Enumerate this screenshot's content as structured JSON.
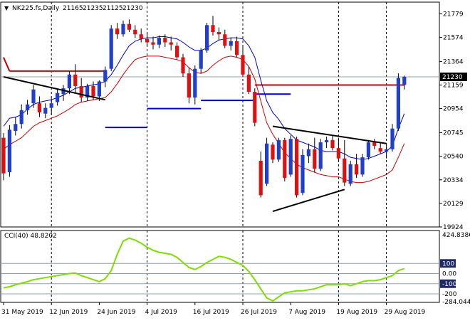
{
  "chart_data": [
    {
      "type": "candlestick",
      "title": "NK225.fs,Daily",
      "ohlc_header": [
        "21165",
        "21235",
        "21125",
        "21230"
      ],
      "last_price_label": "21230",
      "y_ticks": [
        19924,
        20129,
        20334,
        20540,
        20745,
        20954,
        21159,
        21364,
        21574,
        21779
      ],
      "ylim": [
        19924,
        21880
      ],
      "x_ticks": [
        {
          "i": 0,
          "label": "31 May 2019"
        },
        {
          "i": 8,
          "label": "12 Jun 2019"
        },
        {
          "i": 16,
          "label": "24 Jun 2019"
        },
        {
          "i": 24,
          "label": "4 Jul 2019"
        },
        {
          "i": 32,
          "label": "16 Jul 2019"
        },
        {
          "i": 40,
          "label": "26 Jul 2019"
        },
        {
          "i": 48,
          "label": "7 Aug 2019"
        },
        {
          "i": 56,
          "label": "19 Aug 2019"
        },
        {
          "i": 64,
          "label": "29 Aug 2019"
        }
      ],
      "vertical_dashed_at": [
        8,
        24,
        40,
        56,
        64
      ],
      "candles": [
        [
          20700,
          20740,
          20330,
          20390
        ],
        [
          20400,
          20810,
          20360,
          20770
        ],
        [
          20760,
          20880,
          20720,
          20820
        ],
        [
          20820,
          20990,
          20780,
          20940
        ],
        [
          20940,
          21030,
          20900,
          20990
        ],
        [
          21000,
          21160,
          20960,
          21120
        ],
        [
          21000,
          21060,
          20880,
          20920
        ],
        [
          20910,
          21000,
          20870,
          20960
        ],
        [
          20960,
          21050,
          20900,
          21000
        ],
        [
          21010,
          21120,
          20980,
          21090
        ],
        [
          21080,
          21160,
          21020,
          21130
        ],
        [
          21130,
          21280,
          21080,
          21250
        ],
        [
          21250,
          21340,
          21090,
          21150
        ],
        [
          21150,
          21220,
          21010,
          21050
        ],
        [
          21050,
          21170,
          21020,
          21150
        ],
        [
          21150,
          21190,
          21030,
          21060
        ],
        [
          21060,
          21200,
          21020,
          21190
        ],
        [
          21190,
          21320,
          21140,
          21290
        ],
        [
          21300,
          21680,
          21280,
          21650
        ],
        [
          21650,
          21700,
          21560,
          21600
        ],
        [
          21600,
          21720,
          21580,
          21690
        ],
        [
          21690,
          21730,
          21620,
          21640
        ],
        [
          21640,
          21680,
          21570,
          21600
        ],
        [
          21600,
          21650,
          21530,
          21560
        ],
        [
          21560,
          21620,
          21500,
          21530
        ],
        [
          21530,
          21580,
          21470,
          21510
        ],
        [
          21510,
          21590,
          21480,
          21570
        ],
        [
          21570,
          21600,
          21490,
          21530
        ],
        [
          21530,
          21580,
          21460,
          21510
        ],
        [
          21500,
          21530,
          21380,
          21400
        ],
        [
          21400,
          21430,
          21230,
          21260
        ],
        [
          21260,
          21310,
          21000,
          21050
        ],
        [
          21050,
          21330,
          20990,
          21300
        ],
        [
          21300,
          21480,
          21260,
          21460
        ],
        [
          21460,
          21700,
          21440,
          21680
        ],
        [
          21680,
          21760,
          21590,
          21620
        ],
        [
          21620,
          21660,
          21550,
          21600
        ],
        [
          21600,
          21640,
          21480,
          21500
        ],
        [
          21500,
          21570,
          21460,
          21540
        ],
        [
          21540,
          21580,
          21400,
          21420
        ],
        [
          21420,
          21490,
          21230,
          21250
        ],
        [
          21250,
          21320,
          21080,
          21100
        ],
        [
          21100,
          21130,
          20800,
          20830
        ],
        [
          20500,
          20580,
          20180,
          20200
        ],
        [
          20300,
          20700,
          20280,
          20650
        ],
        [
          20640,
          20660,
          20480,
          20510
        ],
        [
          20510,
          20700,
          20490,
          20680
        ],
        [
          20680,
          20700,
          20320,
          20350
        ],
        [
          20380,
          20720,
          20360,
          20690
        ],
        [
          20690,
          20710,
          20180,
          20200
        ],
        [
          20220,
          20600,
          20200,
          20550
        ],
        [
          20540,
          20650,
          20480,
          20600
        ],
        [
          20600,
          20700,
          20400,
          20430
        ],
        [
          20430,
          20690,
          20410,
          20660
        ],
        [
          20660,
          20710,
          20610,
          20680
        ],
        [
          20680,
          20720,
          20590,
          20610
        ],
        [
          20610,
          20700,
          20500,
          20520
        ],
        [
          20520,
          20680,
          20280,
          20310
        ],
        [
          20300,
          20500,
          20280,
          20470
        ],
        [
          20470,
          20560,
          20350,
          20380
        ],
        [
          20380,
          20560,
          20360,
          20530
        ],
        [
          20530,
          20680,
          20510,
          20660
        ],
        [
          20660,
          20690,
          20600,
          20630
        ],
        [
          20610,
          20660,
          20560,
          20580
        ],
        [
          20580,
          20640,
          20520,
          20600
        ],
        [
          20600,
          20820,
          20580,
          20780
        ],
        [
          20780,
          21260,
          20760,
          21220
        ],
        [
          21160,
          21240,
          21120,
          21230
        ]
      ],
      "series": [
        {
          "color": "#0000cc",
          "values": [
            20800,
            20870,
            20880,
            20900,
            20950,
            20990,
            21010,
            21020,
            21030,
            21050,
            21070,
            21100,
            21130,
            21140,
            21150,
            21160,
            21170,
            21190,
            21250,
            21330,
            21420,
            21500,
            21540,
            21560,
            21570,
            21570,
            21580,
            21580,
            21570,
            21560,
            21530,
            21490,
            21460,
            21460,
            21480,
            21520,
            21550,
            21560,
            21570,
            21570,
            21560,
            21500,
            21400,
            21200,
            21020,
            20920,
            20860,
            20780,
            20730,
            20680,
            20660,
            20640,
            20620,
            20590,
            20580,
            20580,
            20580,
            20560,
            20530,
            20520,
            20510,
            20520,
            20540,
            20560,
            20580,
            20630,
            20780,
            20910
          ]
        },
        {
          "color": "#cc0000",
          "values": [
            20600,
            20640,
            20670,
            20700,
            20750,
            20800,
            20830,
            20850,
            20870,
            20890,
            20920,
            20950,
            20990,
            21010,
            21020,
            21030,
            21040,
            21050,
            21100,
            21170,
            21250,
            21320,
            21380,
            21400,
            21410,
            21410,
            21410,
            21400,
            21390,
            21380,
            21360,
            21310,
            21270,
            21260,
            21280,
            21330,
            21370,
            21400,
            21410,
            21400,
            21380,
            21320,
            21210,
            21020,
            20830,
            20730,
            20650,
            20570,
            20520,
            20470,
            20440,
            20420,
            20400,
            20380,
            20370,
            20360,
            20360,
            20340,
            20320,
            20310,
            20310,
            20320,
            20340,
            20360,
            20380,
            20420,
            20530,
            20650
          ]
        }
      ],
      "red_levels": [
        {
          "from": 0,
          "to": 1,
          "from_value": 21400,
          "to_value": 21280
        },
        {
          "from": 1,
          "to": 17,
          "value": 21280
        },
        {
          "from": 42,
          "to": 67,
          "value": 21159
        }
      ],
      "blue_levels": [
        {
          "from": 17,
          "to": 24,
          "value": 20790
        },
        {
          "from": 24,
          "to": 33,
          "value": 20954
        },
        {
          "from": 33,
          "to": 42,
          "value": 21025
        },
        {
          "from": 42,
          "to": 48,
          "value": 21080
        }
      ],
      "trendlines": [
        {
          "from": 0,
          "from_value": 21230,
          "to": 17,
          "to_value": 21030
        },
        {
          "from": 45,
          "from_value": 20800,
          "to": 64,
          "to_value": 20650
        },
        {
          "from": 45,
          "from_value": 20060,
          "to": 57,
          "to_value": 20250
        }
      ]
    },
    {
      "type": "line",
      "title": "CCI(40) 48.8202",
      "scale_max_label": "424.8386",
      "scale_min_label": "-284.044",
      "ylim": [
        -284.044,
        424.8386
      ],
      "levels": [
        {
          "value": 100,
          "label": "100"
        },
        {
          "value": 0,
          "label": "0.00"
        },
        {
          "value": -100,
          "label": "-100"
        },
        {
          "value": -200,
          "label": "-200"
        }
      ],
      "series": [
        {
          "color": "#7fdd00",
          "values": [
            -140,
            -130,
            -110,
            -95,
            -80,
            -60,
            -50,
            -40,
            -30,
            -20,
            -10,
            0,
            5,
            -20,
            -40,
            -60,
            -80,
            -50,
            30,
            190,
            320,
            350,
            330,
            300,
            260,
            230,
            210,
            200,
            190,
            160,
            110,
            60,
            40,
            70,
            110,
            140,
            170,
            160,
            140,
            110,
            80,
            20,
            -60,
            -150,
            -240,
            -270,
            -230,
            -190,
            -180,
            -170,
            -170,
            -160,
            -150,
            -130,
            -110,
            -110,
            -110,
            -100,
            -120,
            -100,
            -80,
            -70,
            -70,
            -60,
            -40,
            -20,
            30,
            48.8
          ]
        }
      ]
    }
  ]
}
